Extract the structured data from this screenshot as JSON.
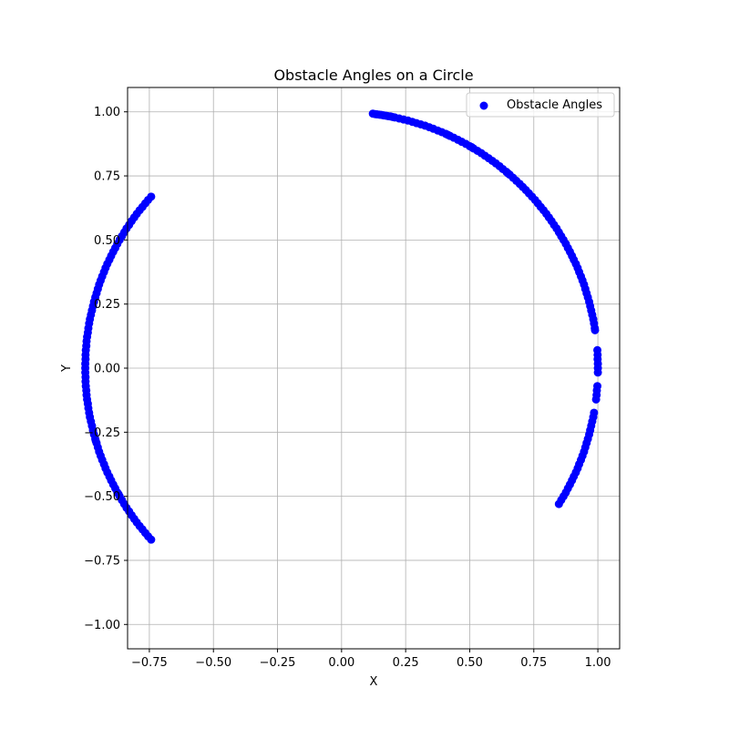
{
  "chart_data": {
    "type": "scatter",
    "title": "Obstacle Angles on a Circle",
    "xlabel": "X",
    "ylabel": "Y",
    "xlim": [
      -0.835,
      1.085
    ],
    "ylim": [
      -1.095,
      1.095
    ],
    "xticks": [
      -0.75,
      -0.5,
      -0.25,
      0.0,
      0.25,
      0.5,
      0.75,
      1.0
    ],
    "yticks": [
      -1.0,
      -0.75,
      -0.5,
      -0.25,
      0.0,
      0.25,
      0.5,
      0.75,
      1.0
    ],
    "xtick_labels": [
      "−0.75",
      "−0.50",
      "−0.25",
      "0.00",
      "0.25",
      "0.50",
      "0.75",
      "1.00"
    ],
    "ytick_labels": [
      "−1.00",
      "−0.75",
      "−0.50",
      "−0.25",
      "0.00",
      "0.25",
      "0.50",
      "0.75",
      "1.00"
    ],
    "grid": true,
    "legend_position": "top-right",
    "series": [
      {
        "name": "Obstacle Angles",
        "color": "#0000ff",
        "angles_deg": [
          83,
          82.5,
          82,
          81.5,
          81,
          80.5,
          80,
          79.5,
          79,
          78.5,
          78,
          77,
          76,
          75,
          74,
          73,
          72,
          71,
          70,
          69,
          68,
          67,
          66,
          65.5,
          65,
          64,
          63,
          62,
          61,
          60,
          59.5,
          59,
          58,
          57,
          56,
          55,
          54,
          53,
          52,
          51,
          50,
          49.5,
          49,
          48,
          47,
          46,
          45,
          44,
          43,
          42,
          41,
          40,
          39,
          38,
          37,
          36,
          35,
          34,
          33,
          32,
          31,
          30,
          29,
          28,
          27,
          26,
          25,
          24,
          23,
          22,
          21,
          20,
          19,
          18,
          17,
          16,
          15,
          14,
          13,
          12,
          11,
          10,
          9,
          8.5,
          4,
          3,
          2,
          1,
          0,
          -1,
          -4,
          -5,
          -6,
          -7,
          -10,
          -11,
          -12,
          -13,
          -14,
          -15,
          -16,
          -17,
          -18,
          -19,
          -20,
          -21,
          -22,
          -23,
          -24,
          -25,
          -26,
          -27,
          -28,
          -29,
          -30,
          -31,
          -32,
          -138,
          -139,
          -140,
          -141,
          -142,
          -143,
          -144,
          -145,
          -146,
          -147,
          -148,
          -149,
          -150,
          -150.5,
          -151,
          -152,
          -153,
          -154,
          -155,
          -156,
          -157,
          -158,
          -159,
          -160,
          -161,
          -162,
          -163,
          -163.5,
          -164,
          -165,
          -166,
          -167,
          -168,
          -169,
          -170,
          -171,
          -172,
          -173,
          -174,
          -175,
          -176,
          -177,
          -178,
          -179,
          -180,
          -181,
          -182,
          -183,
          -184,
          -185,
          -186,
          -187,
          -188,
          -189,
          -190,
          -191,
          -192,
          -193,
          -194,
          -195,
          -196,
          -197,
          -198,
          -199,
          -200,
          -201,
          -202,
          -203,
          -204,
          -205,
          -206,
          -207,
          -208,
          -209,
          -210,
          -211,
          -212,
          -213,
          -214,
          -215,
          -216,
          -217,
          -218,
          -219,
          -220,
          -221,
          -222
        ],
        "x": [],
        "y": []
      }
    ]
  }
}
